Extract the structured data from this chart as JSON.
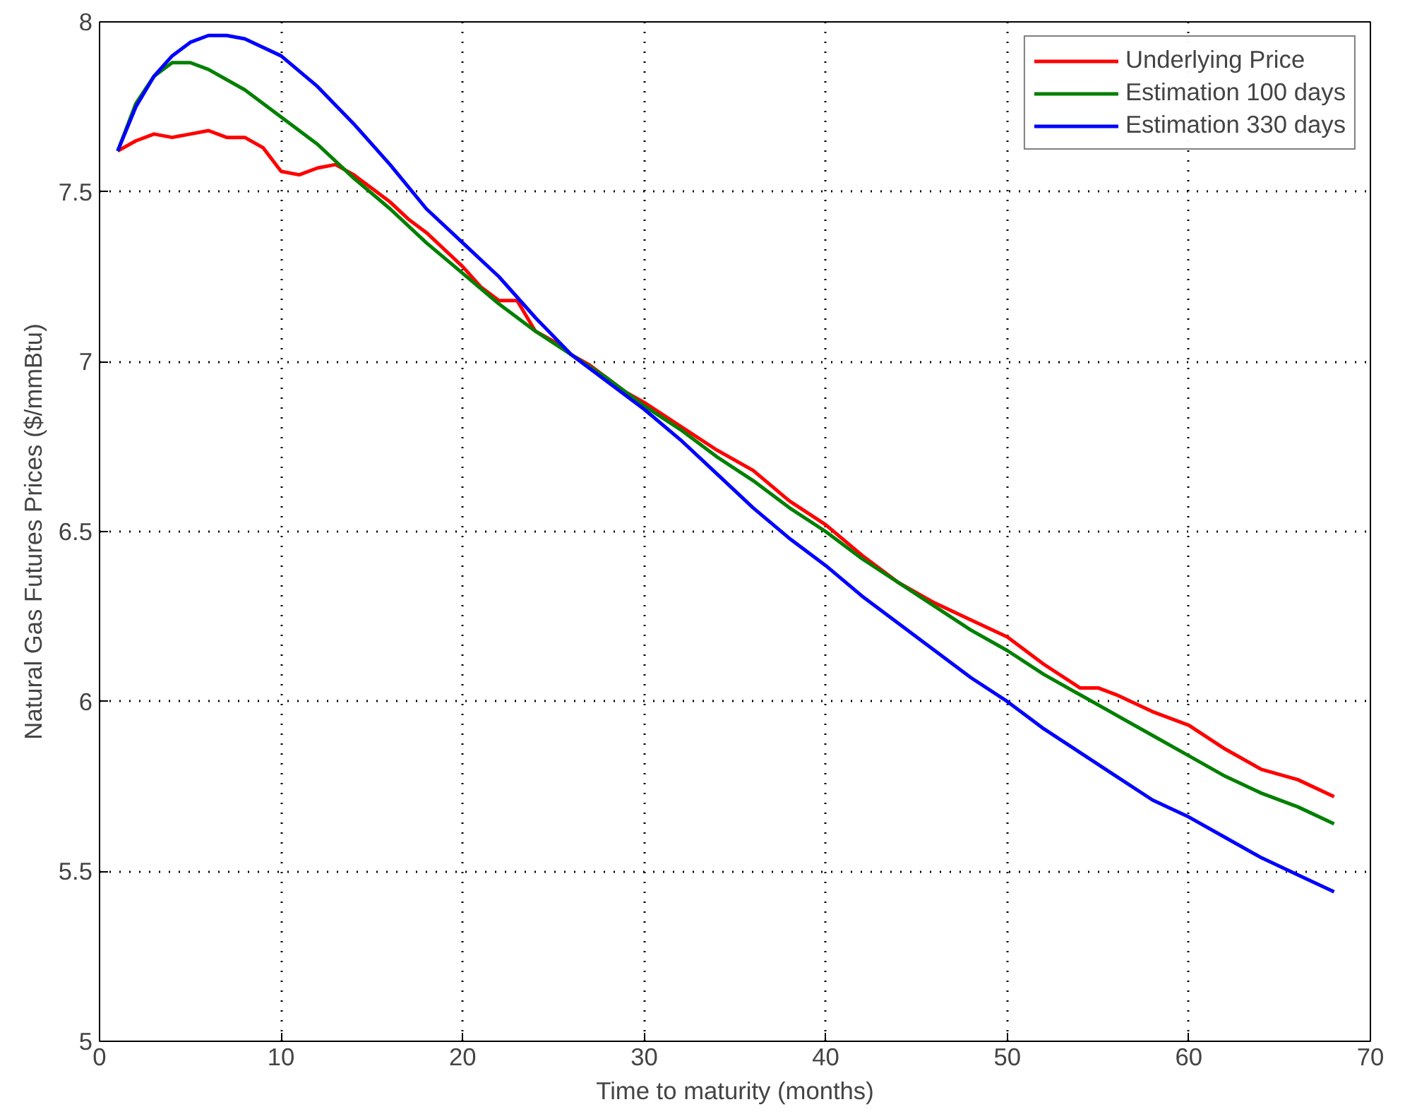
{
  "chart_data": {
    "type": "line",
    "xlabel": "Time to maturity (months)",
    "ylabel": "Natural Gas Futures Prices ($/mmBtu)",
    "xlim": [
      0,
      70
    ],
    "ylim": [
      5,
      8
    ],
    "xticks": [
      0,
      10,
      20,
      30,
      40,
      50,
      60,
      70
    ],
    "yticks": [
      5,
      5.5,
      6,
      6.5,
      7,
      7.5,
      8
    ],
    "grid": true,
    "legend": "top right",
    "line_style": "solid",
    "series": [
      {
        "name": "Underlying Price",
        "color": "#ff0000",
        "x": [
          1,
          2,
          3,
          4,
          5,
          6,
          7,
          8,
          9,
          10,
          11,
          12,
          13,
          14,
          15,
          16,
          17,
          18,
          19,
          20,
          21,
          22,
          23,
          24,
          25,
          26,
          27,
          28,
          29,
          30,
          32,
          34,
          36,
          38,
          40,
          42,
          44,
          46,
          48,
          50,
          52,
          54,
          55,
          56,
          58,
          60,
          62,
          64,
          66,
          68
        ],
        "values": [
          7.62,
          7.65,
          7.67,
          7.66,
          7.67,
          7.68,
          7.66,
          7.66,
          7.63,
          7.56,
          7.55,
          7.57,
          7.58,
          7.55,
          7.51,
          7.47,
          7.42,
          7.38,
          7.33,
          7.28,
          7.22,
          7.18,
          7.18,
          7.09,
          7.06,
          7.02,
          6.99,
          6.95,
          6.91,
          6.88,
          6.81,
          6.74,
          6.68,
          6.59,
          6.52,
          6.43,
          6.35,
          6.29,
          6.24,
          6.19,
          6.11,
          6.04,
          6.04,
          6.02,
          5.97,
          5.93,
          5.86,
          5.8,
          5.77,
          5.72
        ]
      },
      {
        "name": "Estimation 100 days",
        "color": "#008000",
        "x": [
          1,
          2,
          3,
          4,
          5,
          6,
          8,
          10,
          12,
          14,
          16,
          18,
          20,
          22,
          24,
          26,
          28,
          30,
          32,
          34,
          36,
          38,
          40,
          42,
          44,
          46,
          48,
          50,
          52,
          54,
          56,
          58,
          60,
          62,
          64,
          66,
          68
        ],
        "values": [
          7.62,
          7.76,
          7.84,
          7.88,
          7.88,
          7.86,
          7.8,
          7.72,
          7.64,
          7.54,
          7.45,
          7.35,
          7.26,
          7.17,
          7.09,
          7.02,
          6.95,
          6.87,
          6.8,
          6.72,
          6.65,
          6.57,
          6.5,
          6.42,
          6.35,
          6.28,
          6.21,
          6.15,
          6.08,
          6.02,
          5.96,
          5.9,
          5.84,
          5.78,
          5.73,
          5.69,
          5.64
        ]
      },
      {
        "name": "Estimation 330 days",
        "color": "#0000ff",
        "x": [
          1,
          2,
          3,
          4,
          5,
          6,
          7,
          8,
          10,
          12,
          14,
          16,
          18,
          20,
          22,
          24,
          26,
          28,
          30,
          32,
          34,
          36,
          38,
          40,
          42,
          44,
          46,
          48,
          50,
          52,
          54,
          56,
          58,
          60,
          62,
          64,
          66,
          68
        ],
        "values": [
          7.62,
          7.75,
          7.84,
          7.9,
          7.94,
          7.96,
          7.96,
          7.95,
          7.9,
          7.81,
          7.7,
          7.58,
          7.45,
          7.35,
          7.25,
          7.13,
          7.02,
          6.94,
          6.86,
          6.77,
          6.67,
          6.57,
          6.48,
          6.4,
          6.31,
          6.23,
          6.15,
          6.07,
          6.0,
          5.92,
          5.85,
          5.78,
          5.71,
          5.66,
          5.6,
          5.54,
          5.49,
          5.44
        ]
      }
    ]
  }
}
